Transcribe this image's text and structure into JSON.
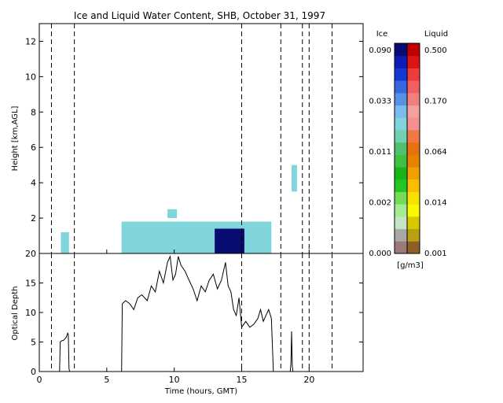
{
  "chart_data": [
    {
      "type": "heatmap",
      "title": "Ice and Liquid Water Content, SHB, October 31, 1997",
      "xlabel": "",
      "ylabel": "Height [km,AGL]",
      "xlim": [
        0,
        24
      ],
      "ylim": [
        0,
        13
      ],
      "xticks": [
        "0",
        "5",
        "10",
        "15",
        "20"
      ],
      "yticks": [
        "2",
        "4",
        "6",
        "8",
        "10",
        "12"
      ],
      "colorbar": {
        "ice_label": "Ice",
        "liquid_label": "Liquid",
        "units": "[g/m3]",
        "ice_ticks": [
          "0.090",
          "0.033",
          "0.011",
          "0.002",
          "0.000"
        ],
        "liquid_ticks": [
          "0.500",
          "0.170",
          "0.064",
          "0.014",
          "0.001"
        ],
        "ice_colors": [
          "#9a7a78",
          "#a8a8a8",
          "#c4e4c4",
          "#a4ec94",
          "#74dc54",
          "#20c820",
          "#18b418",
          "#40c040",
          "#50c070",
          "#70d0b0",
          "#80d4dc",
          "#78bcec",
          "#5890e4",
          "#3868e0",
          "#1438d4",
          "#0c1cb4",
          "#080c70"
        ],
        "liquid_colors": [
          "#8c6028",
          "#b8a010",
          "#d8c800",
          "#f8f800",
          "#f8e000",
          "#f8c000",
          "#f0a000",
          "#e88000",
          "#e87010",
          "#f07848",
          "#f49090",
          "#f4a0a0",
          "#f08080",
          "#f06060",
          "#ec3c3c",
          "#dc1414",
          "#c00000"
        ]
      },
      "cloud_regions": [
        {
          "label": "boundary-layer cloud",
          "t_start": 6.1,
          "t_end": 17.2,
          "base_km": 0.0,
          "top_km": 1.8,
          "ice_ref_g_m3": 0.011
        },
        {
          "label": "ice core",
          "t_start": 13.0,
          "t_end": 15.2,
          "base_km": 0.0,
          "top_km": 1.4,
          "ice_ref_g_m3": 0.09
        },
        {
          "label": "early cloud",
          "t_start": 1.6,
          "t_end": 2.2,
          "base_km": 0.0,
          "top_km": 1.2,
          "ice_ref_g_m3": 0.011
        },
        {
          "label": "elevated cloud",
          "t_start": 9.5,
          "t_end": 10.2,
          "base_km": 2.0,
          "top_km": 2.5,
          "ice_ref_g_m3": 0.011
        },
        {
          "label": "high cloud",
          "t_start": 18.7,
          "t_end": 19.1,
          "base_km": 3.5,
          "top_km": 5.0,
          "ice_ref_g_m3": 0.011
        }
      ],
      "event_lines_hours": [
        0.9,
        2.6,
        15.0,
        17.9,
        19.5,
        20.0,
        21.7
      ]
    },
    {
      "type": "line",
      "title": "",
      "xlabel": "Time (hours, GMT)",
      "ylabel": "Optical Depth",
      "xlim": [
        0,
        24
      ],
      "ylim": [
        0,
        20
      ],
      "xticks": [
        "0",
        "5",
        "10",
        "15",
        "20"
      ],
      "yticks": [
        "0",
        "5",
        "10",
        "15",
        "20"
      ],
      "series": [
        {
          "segments": [
            {
              "x": [
                1.5,
                1.55,
                1.65,
                1.8,
                2.0,
                2.1,
                2.15,
                2.2,
                2.25
              ],
              "y": [
                0,
                5.0,
                5.2,
                5.3,
                5.8,
                6.5,
                6.3,
                0.5,
                0
              ]
            },
            {
              "x": [
                6.1,
                6.15,
                6.4,
                6.7,
                7.0,
                7.3,
                7.6,
                8.0,
                8.3,
                8.6,
                8.9,
                9.2,
                9.5,
                9.7,
                9.9,
                10.1,
                10.3,
                10.5,
                10.8,
                11.1,
                11.4,
                11.7,
                12.0,
                12.3,
                12.6,
                12.9,
                13.2,
                13.5,
                13.8,
                14.0,
                14.2,
                14.4,
                14.6,
                14.8,
                15.0,
                15.3,
                15.6,
                15.9,
                16.2,
                16.4,
                16.6,
                16.8,
                17.0,
                17.2,
                17.3,
                17.35
              ],
              "y": [
                0,
                11.5,
                12.0,
                11.5,
                10.5,
                12.5,
                13.0,
                12.0,
                14.5,
                13.5,
                17.0,
                15.0,
                18.5,
                19.5,
                15.5,
                16.5,
                19.5,
                18.0,
                17.0,
                15.5,
                14.0,
                12.0,
                14.5,
                13.5,
                15.5,
                16.5,
                14.0,
                15.5,
                18.5,
                14.5,
                13.5,
                10.5,
                9.5,
                12.5,
                7.5,
                8.5,
                7.5,
                8.0,
                9.0,
                10.5,
                8.5,
                9.5,
                10.5,
                9.0,
                3.0,
                0
              ]
            },
            {
              "x": [
                18.6,
                18.65,
                18.7,
                18.75,
                18.8
              ],
              "y": [
                0,
                1.5,
                6.8,
                1.0,
                0
              ]
            }
          ]
        }
      ],
      "event_lines_hours": [
        0.9,
        2.6,
        15.0,
        17.9,
        19.5,
        20.0,
        21.7
      ]
    }
  ]
}
